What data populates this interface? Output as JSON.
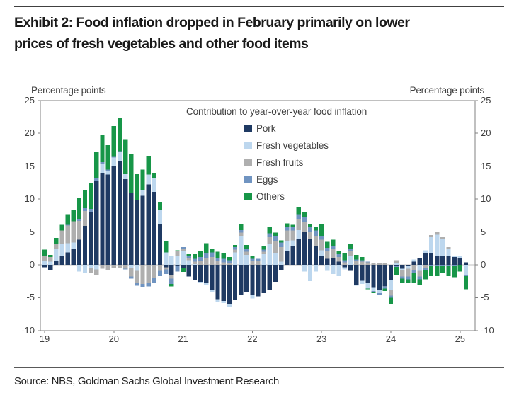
{
  "page": {
    "title_line1": "Exhibit 2: Food inflation dropped in February primarily on lower",
    "title_line2": "prices of fresh vegetables and other food items",
    "source": "Source: NBS, Goldman Sachs Global Investment Research"
  },
  "axis_units": {
    "left": "Percentage points",
    "right": "Percentage points"
  },
  "legend": {
    "title": "Contribution to year-over-year food inflation",
    "items": [
      {
        "label": "Pork",
        "color": "#1F3A63"
      },
      {
        "label": "Fresh vegetables",
        "color": "#BDD7EE"
      },
      {
        "label": "Fresh fruits",
        "color": "#AFAFAF"
      },
      {
        "label": "Eggs",
        "color": "#7094C1"
      },
      {
        "label": "Others",
        "color": "#179648"
      }
    ]
  },
  "chart_data": {
    "type": "bar",
    "stacked": true,
    "title": "Contribution to year-over-year food inflation",
    "xlabel": "",
    "ylabel": "Percentage points",
    "ylim": [
      -10,
      25
    ],
    "y_ticks": [
      25,
      20,
      15,
      10,
      5,
      0,
      -5,
      -10
    ],
    "x_tick_labels": [
      "19",
      "20",
      "21",
      "22",
      "23",
      "24",
      "25"
    ],
    "grid": false,
    "legend_position": "upper center",
    "x": [
      "2019-01",
      "2019-02",
      "2019-03",
      "2019-04",
      "2019-05",
      "2019-06",
      "2019-07",
      "2019-08",
      "2019-09",
      "2019-10",
      "2019-11",
      "2019-12",
      "2020-01",
      "2020-02",
      "2020-03",
      "2020-04",
      "2020-05",
      "2020-06",
      "2020-07",
      "2020-08",
      "2020-09",
      "2020-10",
      "2020-11",
      "2020-12",
      "2021-01",
      "2021-02",
      "2021-03",
      "2021-04",
      "2021-05",
      "2021-06",
      "2021-07",
      "2021-08",
      "2021-09",
      "2021-10",
      "2021-11",
      "2021-12",
      "2022-01",
      "2022-02",
      "2022-03",
      "2022-04",
      "2022-05",
      "2022-06",
      "2022-07",
      "2022-08",
      "2022-09",
      "2022-10",
      "2022-11",
      "2022-12",
      "2023-01",
      "2023-02",
      "2023-03",
      "2023-04",
      "2023-05",
      "2023-06",
      "2023-07",
      "2023-08",
      "2023-09",
      "2023-10",
      "2023-11",
      "2023-12",
      "2024-01",
      "2024-02",
      "2024-03",
      "2024-04",
      "2024-05",
      "2024-06",
      "2024-07",
      "2024-08",
      "2024-09",
      "2024-10",
      "2024-11",
      "2024-12",
      "2025-01",
      "2025-02"
    ],
    "series": [
      {
        "name": "Pork",
        "color": "#1F3A63",
        "values": [
          -0.4,
          -0.8,
          0.6,
          1.4,
          1.9,
          2.4,
          3.8,
          5.9,
          8.1,
          12.8,
          13.9,
          13.7,
          15.0,
          15.7,
          13.0,
          11.0,
          9.8,
          10.5,
          12.2,
          11.1,
          6.2,
          -0.4,
          -1.6,
          -0.2,
          -0.5,
          -1.8,
          -2.3,
          -2.6,
          -2.7,
          -3.8,
          -5.2,
          -5.5,
          -5.9,
          -5.4,
          -4.6,
          -4.2,
          -4.5,
          -4.8,
          -4.3,
          -3.8,
          -2.6,
          -0.8,
          2.1,
          2.9,
          4.0,
          5.0,
          3.9,
          2.8,
          1.4,
          0.9,
          1.1,
          0.5,
          -0.4,
          -0.9,
          -3.0,
          -2.4,
          -2.8,
          -3.5,
          -3.8,
          -3.3,
          -2.3,
          -0.1,
          -0.6,
          -0.2,
          0.5,
          1.0,
          1.8,
          1.7,
          1.4,
          1.4,
          1.3,
          1.2,
          1.0,
          0.4
        ]
      },
      {
        "name": "Fresh vegetables",
        "color": "#BDD7EE",
        "values": [
          0.6,
          0.5,
          1.9,
          1.8,
          1.4,
          1.0,
          -1.0,
          -1.3,
          -0.5,
          -0.7,
          1.4,
          0.6,
          1.3,
          1.5,
          0.8,
          -0.5,
          -0.9,
          0.9,
          1.5,
          2.1,
          2.1,
          1.9,
          1.3,
          1.4,
          2.1,
          0.7,
          0.1,
          -0.2,
          -0.3,
          -0.4,
          -0.5,
          -0.3,
          -0.5,
          1.9,
          4.3,
          1.5,
          -0.6,
          0.0,
          1.6,
          3.2,
          1.7,
          0.5,
          1.5,
          0.8,
          1.3,
          -1.0,
          -2.5,
          -1.0,
          0.8,
          -0.9,
          -1.4,
          -1.7,
          -0.3,
          1.3,
          -0.2,
          -0.5,
          -0.8,
          -0.5,
          -0.5,
          -0.1,
          -1.6,
          0.3,
          -0.2,
          -0.4,
          0.3,
          -0.9,
          0.4,
          2.5,
          3.2,
          2.6,
          1.2,
          0.1,
          0.3,
          -1.5
        ]
      },
      {
        "name": "Fresh fruits",
        "color": "#AFAFAF",
        "values": [
          0.8,
          0.7,
          0.7,
          2.0,
          2.7,
          3.2,
          2.9,
          2.3,
          -0.8,
          -0.9,
          -0.6,
          -0.8,
          -0.5,
          -0.5,
          -0.6,
          -1.3,
          -1.9,
          -2.9,
          -2.7,
          -2.0,
          -0.9,
          -0.3,
          -0.5,
          0.7,
          0.4,
          0.4,
          0.4,
          0.6,
          1.0,
          1.2,
          0.6,
          0.4,
          0.3,
          0.4,
          0.6,
          0.5,
          0.6,
          0.6,
          0.4,
          1.0,
          1.9,
          2.2,
          1.6,
          1.5,
          1.6,
          1.5,
          1.1,
          1.6,
          1.6,
          1.2,
          1.3,
          0.7,
          0.4,
          0.8,
          0.6,
          0.5,
          0.4,
          0.3,
          0.3,
          0.3,
          -0.8,
          0.4,
          -1.0,
          -1.2,
          -0.8,
          -0.9,
          -0.5,
          0.3,
          0.4,
          0.2,
          0.2,
          0.1,
          0.1,
          -0.1
        ]
      },
      {
        "name": "Eggs",
        "color": "#7094C1",
        "values": [
          0.0,
          0.0,
          0.0,
          0.0,
          0.1,
          0.0,
          0.3,
          0.4,
          0.4,
          0.4,
          0.3,
          0.2,
          0.1,
          0.1,
          -0.1,
          -0.3,
          -0.4,
          -0.5,
          -0.6,
          -0.7,
          -0.8,
          -0.7,
          -0.8,
          -0.8,
          0.2,
          0.3,
          0.4,
          0.6,
          0.7,
          0.7,
          0.5,
          0.5,
          0.4,
          0.4,
          0.4,
          0.4,
          0.3,
          0.3,
          0.3,
          0.6,
          0.7,
          0.7,
          0.6,
          0.6,
          0.8,
          0.8,
          0.8,
          0.8,
          0.6,
          0.5,
          0.5,
          0.4,
          0.3,
          0.3,
          0.2,
          0.2,
          0.1,
          -0.1,
          -0.2,
          -0.2,
          -0.3,
          -0.2,
          -0.3,
          -0.4,
          -0.4,
          -0.4,
          -0.3,
          -0.2,
          -0.1,
          -0.1,
          -0.1,
          -0.1,
          0.0,
          -0.1
        ]
      },
      {
        "name": "Others",
        "color": "#179648",
        "values": [
          0.9,
          0.3,
          0.9,
          0.9,
          1.6,
          1.7,
          3.1,
          2.7,
          4.0,
          3.9,
          4.1,
          3.7,
          4.7,
          5.1,
          5.2,
          5.9,
          4.0,
          3.1,
          2.8,
          0.7,
          1.3,
          1.7,
          -0.4,
          0.1,
          -0.6,
          0.2,
          0.7,
          0.9,
          1.6,
          0.6,
          0.9,
          0.8,
          0.5,
          0.3,
          0.9,
          0.6,
          0.4,
          0.0,
          0.5,
          0.9,
          0.6,
          0.3,
          0.5,
          0.3,
          1.1,
          0.7,
          0.4,
          0.6,
          1.8,
          0.9,
          0.9,
          0.5,
          1.0,
          0.8,
          0.7,
          0.5,
          -0.1,
          -0.2,
          0.0,
          -0.4,
          -0.9,
          -1.3,
          -0.6,
          -0.5,
          -1.6,
          -0.9,
          -1.4,
          -1.5,
          -1.6,
          -1.2,
          -1.6,
          -1.8,
          -1.0,
          -2.0
        ]
      }
    ]
  }
}
